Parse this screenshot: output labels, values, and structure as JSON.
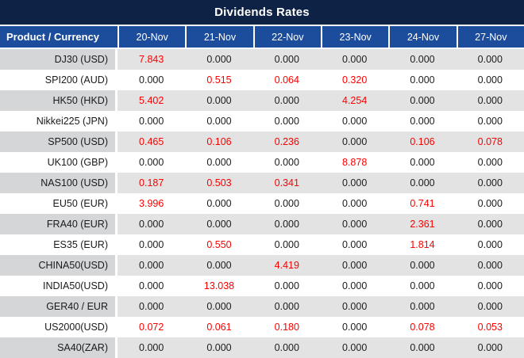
{
  "window": {
    "title": "Dividends Rates"
  },
  "chart_data": {
    "type": "table",
    "title": "Dividends Rates",
    "columns": [
      "Product / Currency",
      "20-Nov",
      "21-Nov",
      "22-Nov",
      "23-Nov",
      "24-Nov",
      "27-Nov"
    ],
    "rows": [
      {
        "product": "DJ30 (USD)",
        "values": [
          "7.843",
          "0.000",
          "0.000",
          "0.000",
          "0.000",
          "0.000"
        ]
      },
      {
        "product": "SPI200 (AUD)",
        "values": [
          "0.000",
          "0.515",
          "0.064",
          "0.320",
          "0.000",
          "0.000"
        ]
      },
      {
        "product": "HK50 (HKD)",
        "values": [
          "5.402",
          "0.000",
          "0.000",
          "4.254",
          "0.000",
          "0.000"
        ]
      },
      {
        "product": "Nikkei225 (JPN)",
        "values": [
          "0.000",
          "0.000",
          "0.000",
          "0.000",
          "0.000",
          "0.000"
        ]
      },
      {
        "product": "SP500 (USD)",
        "values": [
          "0.465",
          "0.106",
          "0.236",
          "0.000",
          "0.106",
          "0.078"
        ]
      },
      {
        "product": "UK100 (GBP)",
        "values": [
          "0.000",
          "0.000",
          "0.000",
          "8.878",
          "0.000",
          "0.000"
        ]
      },
      {
        "product": "NAS100 (USD)",
        "values": [
          "0.187",
          "0.503",
          "0.341",
          "0.000",
          "0.000",
          "0.000"
        ]
      },
      {
        "product": "EU50 (EUR)",
        "values": [
          "3.996",
          "0.000",
          "0.000",
          "0.000",
          "0.741",
          "0.000"
        ]
      },
      {
        "product": "FRA40 (EUR)",
        "values": [
          "0.000",
          "0.000",
          "0.000",
          "0.000",
          "2.361",
          "0.000"
        ]
      },
      {
        "product": "ES35 (EUR)",
        "values": [
          "0.000",
          "0.550",
          "0.000",
          "0.000",
          "1.814",
          "0.000"
        ]
      },
      {
        "product": "CHINA50(USD)",
        "values": [
          "0.000",
          "0.000",
          "4.419",
          "0.000",
          "0.000",
          "0.000"
        ]
      },
      {
        "product": "INDIA50(USD)",
        "values": [
          "0.000",
          "13.038",
          "0.000",
          "0.000",
          "0.000",
          "0.000"
        ]
      },
      {
        "product": "GER40 / EUR",
        "values": [
          "0.000",
          "0.000",
          "0.000",
          "0.000",
          "0.000",
          "0.000"
        ]
      },
      {
        "product": "US2000(USD)",
        "values": [
          "0.072",
          "0.061",
          "0.180",
          "0.000",
          "0.078",
          "0.053"
        ]
      },
      {
        "product": "SA40(ZAR)",
        "values": [
          "0.000",
          "0.000",
          "0.000",
          "0.000",
          "0.000",
          "0.000"
        ]
      }
    ],
    "highlight_rule": "non-zero dividend values rendered in red"
  },
  "colors": {
    "title_bg": "#0d2244",
    "header_bg": "#1c4c9c",
    "divider": "#ffffff",
    "row_bg": "#ffffff",
    "row_alt_value_bg": "#e3e3e3",
    "row_alt_product_bg": "#d5d6d8",
    "nonzero_color": "#fb0000",
    "zero_color": "#1c1c1c"
  }
}
